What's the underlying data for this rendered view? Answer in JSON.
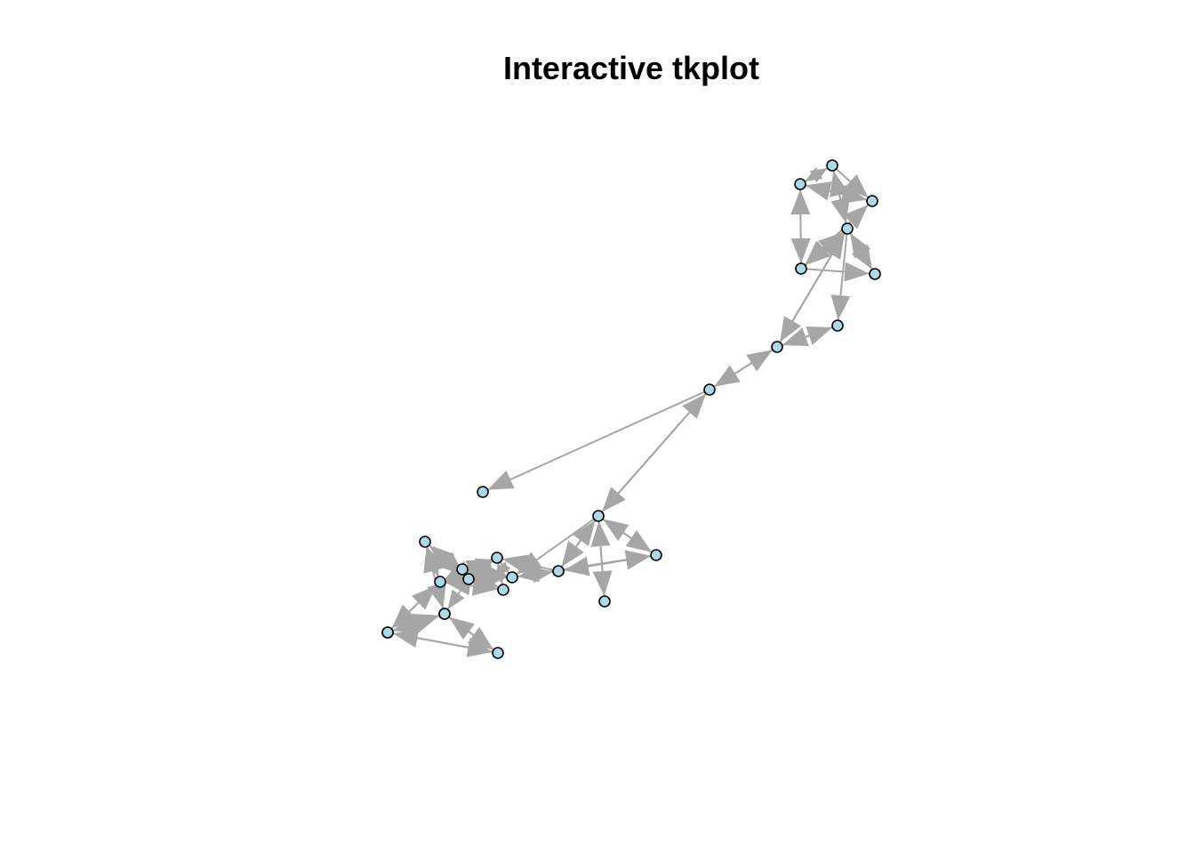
{
  "title": "Interactive tkplot",
  "colors": {
    "background": "#ffffff",
    "edge": "#a6a6a6",
    "vertex_fill": "#add8e6",
    "vertex_stroke": "#000000",
    "title": "#000000"
  },
  "graph": {
    "directed": true,
    "vertex_count": 26,
    "edges": [
      [
        0,
        3
      ],
      [
        3,
        0
      ],
      [
        0,
        1
      ],
      [
        1,
        0
      ],
      [
        0,
        2
      ],
      [
        2,
        1
      ],
      [
        1,
        4
      ],
      [
        4,
        1
      ],
      [
        2,
        4
      ],
      [
        4,
        2
      ],
      [
        1,
        2
      ],
      [
        3,
        4
      ],
      [
        4,
        3
      ],
      [
        3,
        5
      ],
      [
        5,
        3
      ],
      [
        3,
        7
      ],
      [
        7,
        3
      ],
      [
        3,
        6
      ],
      [
        6,
        7
      ],
      [
        7,
        6
      ],
      [
        4,
        5
      ],
      [
        7,
        8
      ],
      [
        8,
        7
      ],
      [
        8,
        9
      ],
      [
        9,
        8
      ],
      [
        8,
        12
      ],
      [
        9,
        10
      ],
      [
        10,
        9
      ],
      [
        9,
        11
      ],
      [
        11,
        9
      ],
      [
        9,
        13
      ],
      [
        13,
        9
      ],
      [
        9,
        14
      ],
      [
        13,
        14
      ],
      [
        14,
        13
      ],
      [
        13,
        10
      ],
      [
        10,
        13
      ],
      [
        14,
        15
      ],
      [
        15,
        14
      ],
      [
        14,
        16
      ],
      [
        16,
        14
      ],
      [
        14,
        17
      ],
      [
        17,
        14
      ],
      [
        15,
        17
      ],
      [
        17,
        15
      ],
      [
        15,
        18
      ],
      [
        18,
        15
      ],
      [
        15,
        19
      ],
      [
        19,
        15
      ],
      [
        16,
        17
      ],
      [
        17,
        16
      ],
      [
        16,
        18
      ],
      [
        16,
        19
      ],
      [
        17,
        18
      ],
      [
        18,
        17
      ],
      [
        17,
        20
      ],
      [
        20,
        17
      ],
      [
        17,
        21
      ],
      [
        18,
        22
      ],
      [
        22,
        18
      ],
      [
        18,
        19
      ],
      [
        19,
        18
      ],
      [
        20,
        18
      ],
      [
        18,
        20
      ],
      [
        20,
        21
      ],
      [
        21,
        20
      ],
      [
        21,
        22
      ],
      [
        22,
        21
      ],
      [
        21,
        23
      ],
      [
        21,
        24
      ],
      [
        24,
        21
      ],
      [
        23,
        24
      ],
      [
        24,
        23
      ],
      [
        23,
        25
      ],
      [
        25,
        23
      ],
      [
        13,
        15
      ],
      [
        14,
        10
      ],
      [
        16,
        15
      ]
    ]
  }
}
